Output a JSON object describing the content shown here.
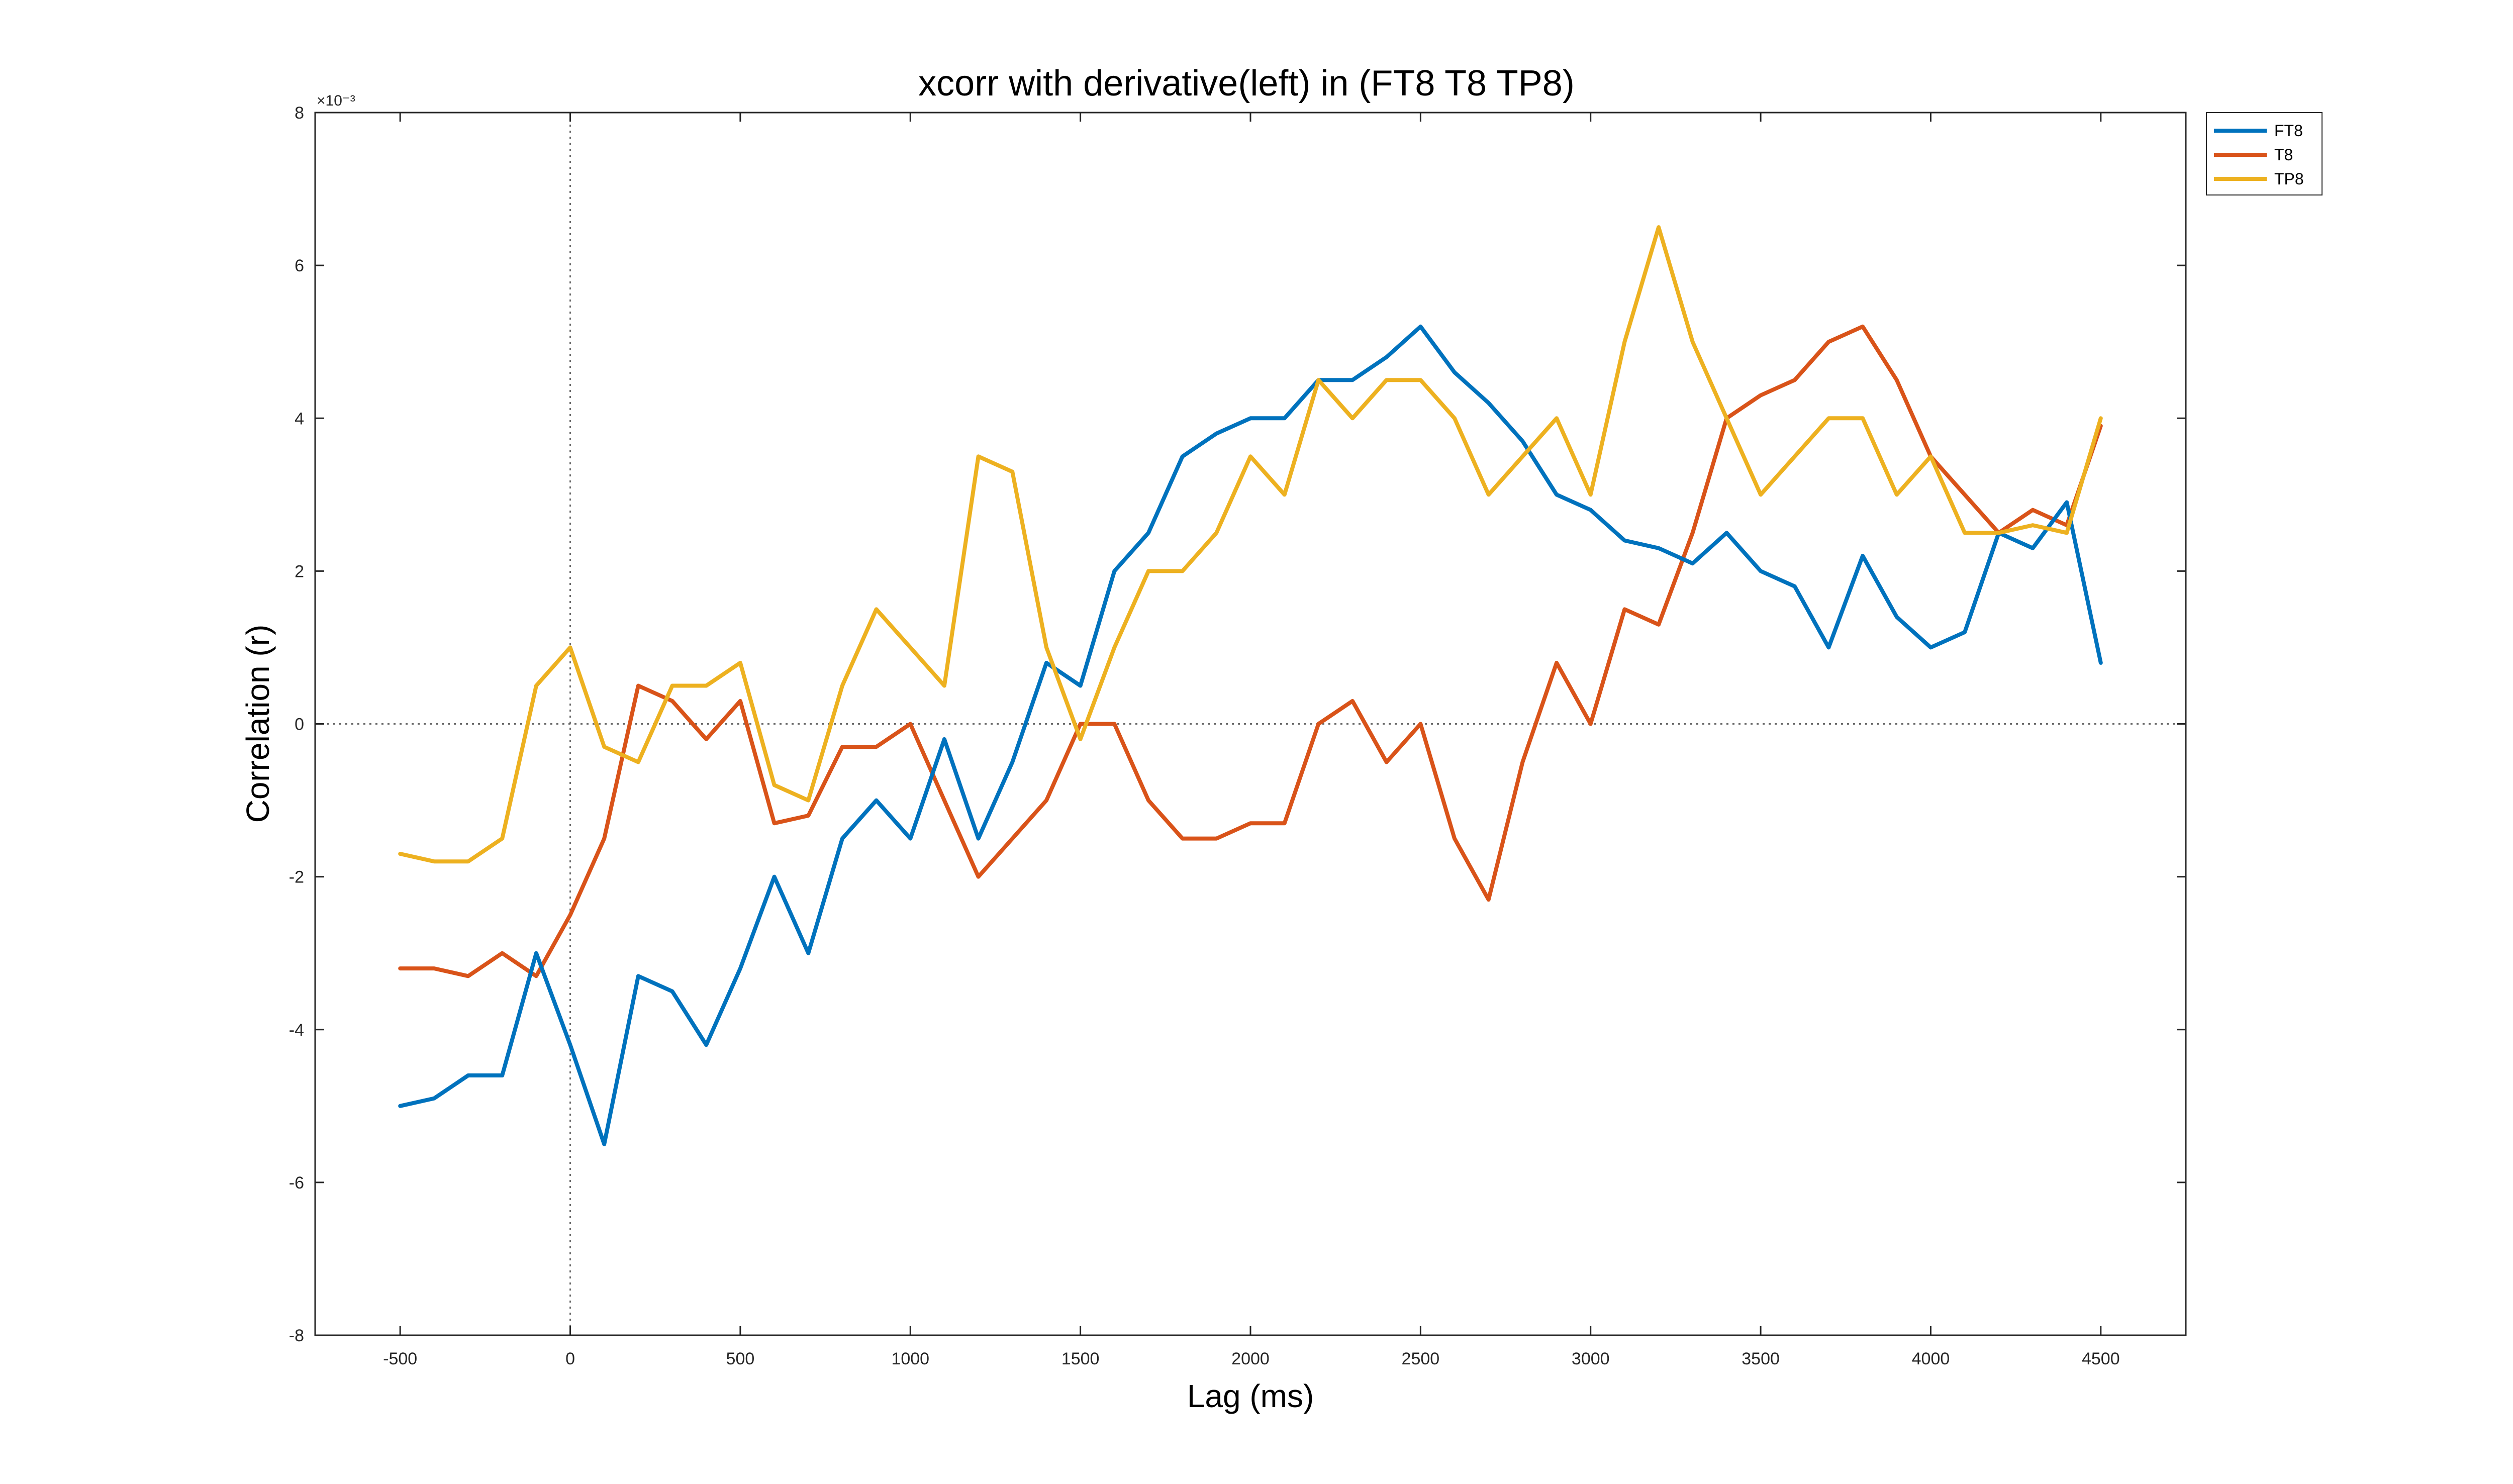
{
  "chart_data": {
    "type": "line",
    "title": "xcorr with derivative(left) in (FT8 T8 TP8)",
    "xlabel": "Lag (ms)",
    "ylabel": "Correlation (r)",
    "y_exponent_label": "×10⁻³",
    "y_scale": 0.001,
    "xlim": [
      -750,
      4750
    ],
    "ylim": [
      -8,
      8
    ],
    "xticks": [
      -500,
      0,
      500,
      1000,
      1500,
      2000,
      2500,
      3000,
      3500,
      4000,
      4500
    ],
    "xtick_labels": [
      "-500",
      "0",
      "500",
      "1000",
      "1500",
      "2000",
      "2500",
      "3000",
      "3500",
      "4000",
      "4500"
    ],
    "yticks": [
      -8,
      -6,
      -4,
      -2,
      0,
      2,
      4,
      6,
      8
    ],
    "ytick_labels": [
      "-8",
      "-6",
      "-4",
      "-2",
      "0",
      "2",
      "4",
      "6",
      "8"
    ],
    "grid": false,
    "reference_lines": [
      {
        "axis": "x",
        "value": 0,
        "style": "dotted"
      },
      {
        "axis": "y",
        "value": 0,
        "style": "dotted"
      }
    ],
    "legend_position": "outside-top-right",
    "colors": {
      "FT8": "#0072BD",
      "T8": "#D95319",
      "TP8": "#EDB120"
    },
    "x": [
      -500,
      -400,
      -300,
      -200,
      -100,
      0,
      100,
      200,
      300,
      400,
      500,
      600,
      700,
      800,
      900,
      1000,
      1100,
      1200,
      1300,
      1400,
      1500,
      1600,
      1700,
      1800,
      1900,
      2000,
      2100,
      2200,
      2300,
      2400,
      2500,
      2600,
      2700,
      2800,
      2900,
      3000,
      3100,
      3200,
      3300,
      3400,
      3500,
      3600,
      3700,
      3800,
      3900,
      4000,
      4100,
      4200,
      4300,
      4400,
      4500
    ],
    "series": [
      {
        "name": "FT8",
        "values": [
          -5.0,
          -4.9,
          -4.6,
          -4.6,
          -3.0,
          -4.2,
          -5.5,
          -3.3,
          -3.5,
          -4.2,
          -3.2,
          -2.0,
          -3.0,
          -1.5,
          -1.0,
          -1.5,
          -0.2,
          -1.5,
          -0.5,
          0.8,
          0.5,
          2.0,
          2.5,
          3.5,
          3.8,
          4.0,
          4.0,
          4.5,
          4.5,
          4.8,
          5.2,
          4.6,
          4.2,
          3.7,
          3.0,
          2.8,
          2.4,
          2.3,
          2.1,
          2.5,
          2.0,
          1.8,
          1.0,
          2.2,
          1.4,
          1.0,
          1.2,
          2.5,
          2.3,
          2.9,
          0.8
        ]
      },
      {
        "name": "T8",
        "values": [
          -3.2,
          -3.2,
          -3.3,
          -3.0,
          -3.3,
          -2.5,
          -1.5,
          0.5,
          0.3,
          -0.2,
          0.3,
          -1.3,
          -1.2,
          -0.3,
          -0.3,
          0.0,
          -1.0,
          -2.0,
          -1.5,
          -1.0,
          0.0,
          0.0,
          -1.0,
          -1.5,
          -1.5,
          -1.3,
          -1.3,
          0.0,
          0.3,
          -0.5,
          0.0,
          -1.5,
          -2.3,
          -0.5,
          0.8,
          0.0,
          1.5,
          1.3,
          2.5,
          4.0,
          4.3,
          4.5,
          5.0,
          5.2,
          4.5,
          3.5,
          3.0,
          2.5,
          2.8,
          2.6,
          3.9
        ]
      },
      {
        "name": "TP8",
        "values": [
          -1.7,
          -1.8,
          -1.8,
          -1.5,
          0.5,
          1.0,
          -0.3,
          -0.5,
          0.5,
          0.5,
          0.8,
          -0.8,
          -1.0,
          0.5,
          1.5,
          1.0,
          0.5,
          3.5,
          3.3,
          1.0,
          -0.2,
          1.0,
          2.0,
          2.0,
          2.5,
          3.5,
          3.0,
          4.5,
          4.0,
          4.5,
          4.5,
          4.0,
          3.0,
          3.5,
          4.0,
          3.0,
          5.0,
          6.5,
          5.0,
          4.0,
          3.0,
          3.5,
          4.0,
          4.0,
          3.0,
          3.5,
          2.5,
          2.5,
          2.6,
          2.5,
          4.0
        ]
      }
    ]
  }
}
